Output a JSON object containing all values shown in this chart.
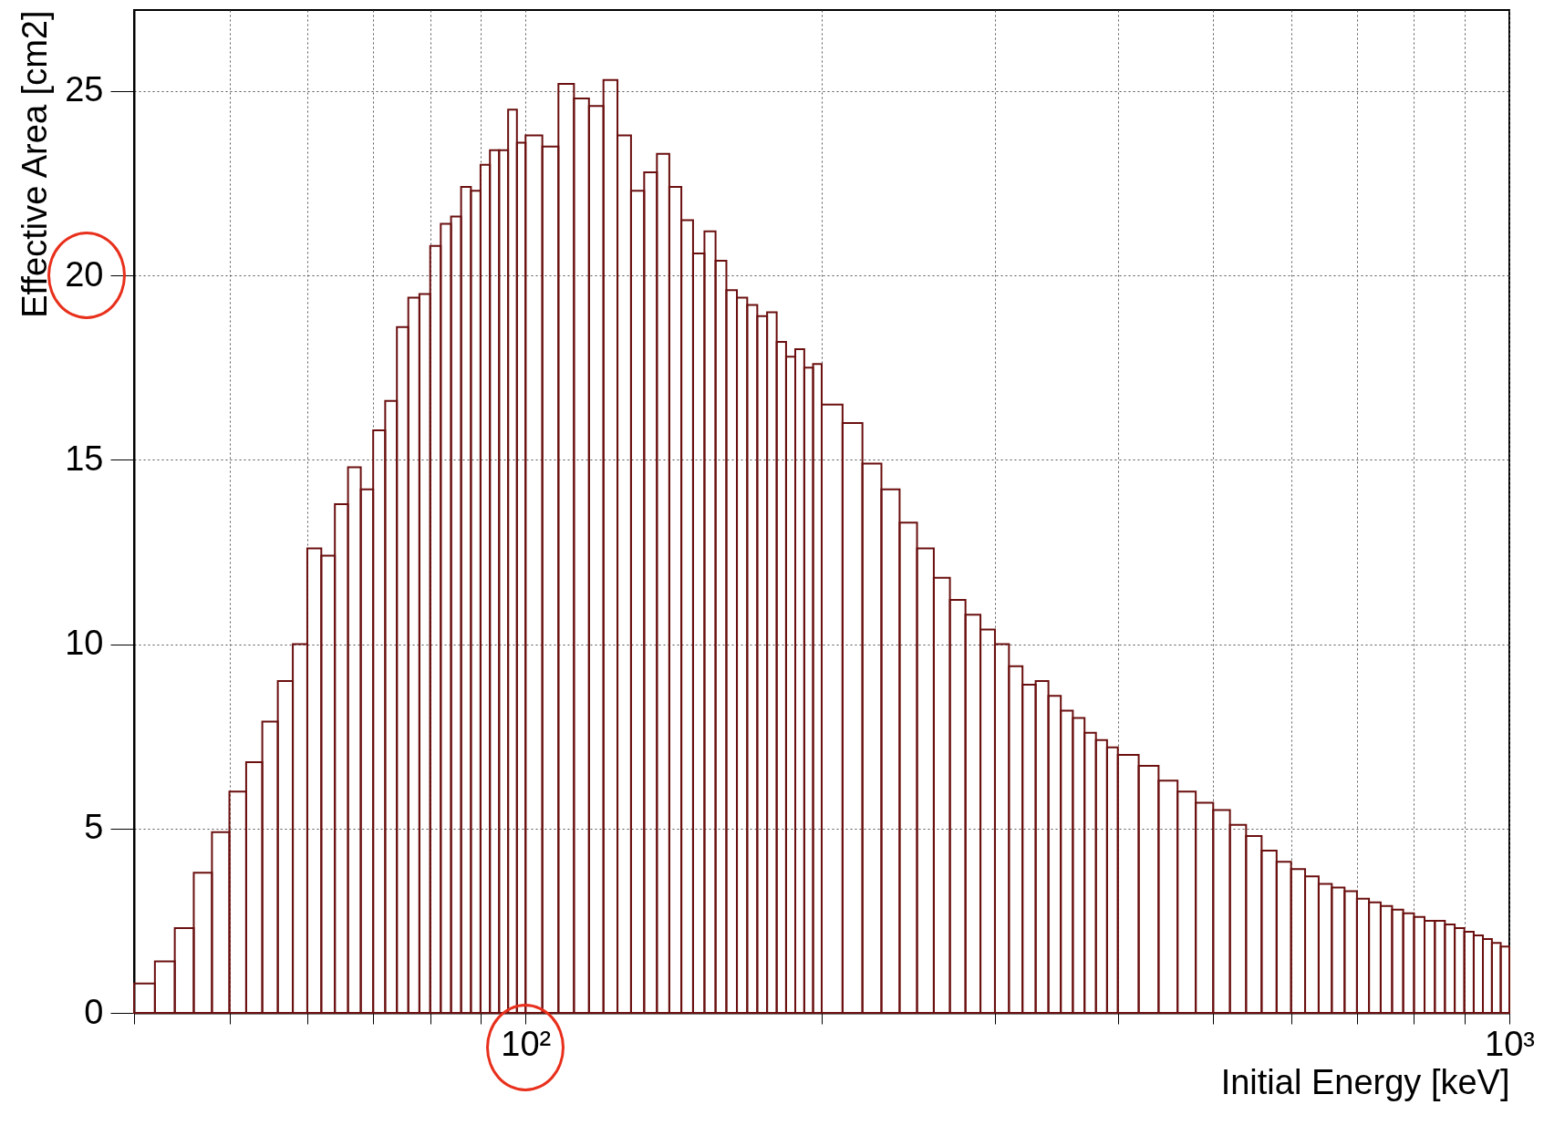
{
  "chart_data": {
    "type": "histogram",
    "xlabel": "Initial Energy [keV]",
    "ylabel": "Effective Area [cm2]",
    "log": "x",
    "grid": true,
    "color": "#6b0f0f",
    "xlim": [
      40,
      1000
    ],
    "ylim": [
      0,
      27.2
    ],
    "xticks": [
      {
        "value": 40,
        "label": null
      },
      {
        "value": 50,
        "label": null
      },
      {
        "value": 60,
        "label": null
      },
      {
        "value": 70,
        "label": null
      },
      {
        "value": 80,
        "label": null
      },
      {
        "value": 90,
        "label": null
      },
      {
        "value": 100,
        "label": "10²"
      },
      {
        "value": 200,
        "label": null
      },
      {
        "value": 300,
        "label": null
      },
      {
        "value": 400,
        "label": null
      },
      {
        "value": 500,
        "label": null
      },
      {
        "value": 600,
        "label": null
      },
      {
        "value": 700,
        "label": null
      },
      {
        "value": 800,
        "label": null
      },
      {
        "value": 900,
        "label": null
      },
      {
        "value": 1000,
        "label": "10³"
      }
    ],
    "yticks": [
      0,
      5,
      10,
      15,
      20,
      25
    ],
    "bins": [
      40,
      42,
      44,
      46,
      48,
      50,
      52,
      54,
      56,
      58,
      60,
      62,
      64,
      66,
      68,
      70,
      72,
      74,
      76,
      78,
      80,
      82,
      84,
      86,
      88,
      90,
      92,
      94,
      96,
      98,
      100,
      104,
      108,
      112,
      116,
      120,
      124,
      128,
      132,
      136,
      140,
      144,
      148,
      152,
      156,
      160,
      164,
      168,
      172,
      176,
      180,
      184,
      188,
      192,
      196,
      200,
      210,
      220,
      230,
      240,
      250,
      260,
      270,
      280,
      290,
      300,
      310,
      320,
      330,
      340,
      350,
      360,
      370,
      380,
      390,
      400,
      420,
      440,
      460,
      480,
      500,
      520,
      540,
      560,
      580,
      600,
      620,
      640,
      660,
      680,
      700,
      720,
      740,
      760,
      780,
      800,
      820,
      840,
      860,
      880,
      900,
      920,
      940,
      960,
      980,
      1000
    ],
    "values": [
      0.8,
      1.4,
      2.3,
      3.8,
      4.9,
      6.0,
      6.8,
      7.9,
      9.0,
      10.0,
      12.6,
      12.4,
      13.8,
      14.8,
      14.2,
      15.8,
      16.6,
      18.6,
      19.4,
      19.5,
      20.8,
      21.4,
      21.6,
      22.4,
      22.3,
      23.0,
      23.4,
      23.4,
      24.5,
      23.6,
      23.8,
      23.5,
      25.2,
      24.8,
      24.6,
      25.3,
      23.8,
      22.3,
      22.8,
      23.3,
      22.4,
      21.5,
      20.6,
      21.2,
      20.4,
      19.6,
      19.4,
      19.2,
      18.9,
      19.0,
      18.2,
      17.8,
      18.0,
      17.5,
      17.6,
      16.5,
      16.0,
      14.9,
      14.2,
      13.3,
      12.6,
      11.8,
      11.2,
      10.8,
      10.4,
      10.0,
      9.4,
      8.9,
      9.0,
      8.6,
      8.2,
      8.0,
      7.6,
      7.4,
      7.2,
      7.0,
      6.7,
      6.3,
      6.0,
      5.7,
      5.5,
      5.1,
      4.8,
      4.4,
      4.1,
      3.9,
      3.7,
      3.5,
      3.4,
      3.3,
      3.1,
      3.0,
      2.9,
      2.8,
      2.7,
      2.6,
      2.5,
      2.5,
      2.4,
      2.3,
      2.2,
      2.1,
      2.0,
      1.9,
      1.8
    ]
  }
}
